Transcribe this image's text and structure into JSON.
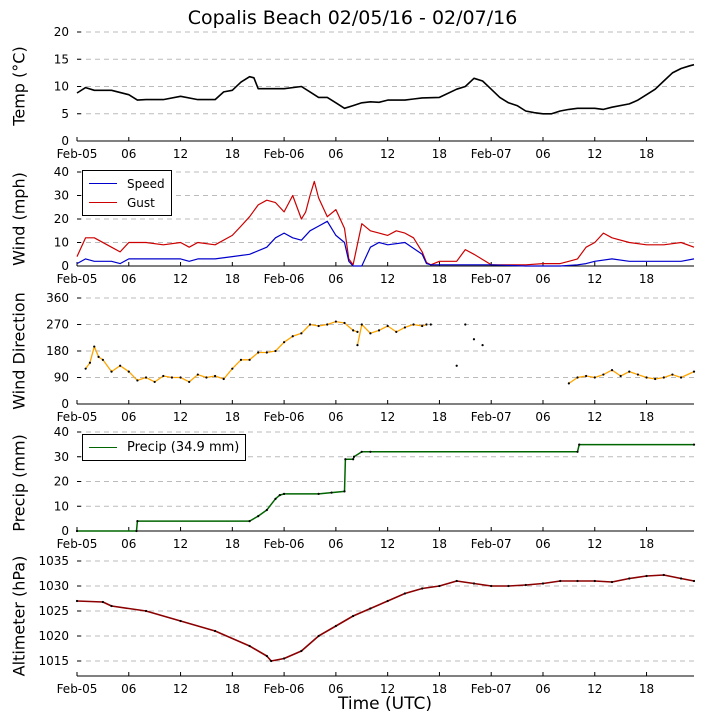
{
  "title": "Copalis Beach 02/05/16 - 02/07/16",
  "xlabel": "Time (UTC)",
  "x_tick_labels": [
    "Feb-05",
    "06",
    "12",
    "18",
    "Feb-06",
    "06",
    "12",
    "18",
    "Feb-07",
    "06",
    "12",
    "18"
  ],
  "colors": {
    "temp": "#000000",
    "speed": "#0000cc",
    "gust": "#cc0000",
    "direction": "#ffa500",
    "precip": "#006600",
    "altimeter": "#8b0000",
    "grid": "#bbbbbb"
  },
  "panels": {
    "temp": {
      "ylabel": "Temp ($^\\circ$C)",
      "ylabel_display": "Temp (°C)",
      "yticks": [
        "0",
        "5",
        "10",
        "15",
        "20"
      ]
    },
    "wind": {
      "ylabel": "Wind (mph)",
      "yticks": [
        "0",
        "10",
        "20",
        "30",
        "40"
      ],
      "legend": [
        "Speed",
        "Gust"
      ]
    },
    "direction": {
      "ylabel": "Wind Direction",
      "yticks": [
        "0",
        "90",
        "180",
        "270",
        "360"
      ]
    },
    "precip": {
      "ylabel": "Precip (mm)",
      "yticks": [
        "0",
        "10",
        "20",
        "30",
        "40"
      ],
      "legend": [
        "Precip (34.9 mm)"
      ]
    },
    "altimeter": {
      "ylabel": "Altimeter (hPa)",
      "yticks": [
        "1015",
        "1020",
        "1025",
        "1030",
        "1035"
      ]
    }
  },
  "chart_data": [
    {
      "type": "line",
      "title": "Copalis Beach 02/05/16 - 02/07/16",
      "xlabel": "",
      "ylabel": "Temp (°C)",
      "x_unit": "hours since Feb-05 00 UTC",
      "xlim": [
        0,
        71.5
      ],
      "ylim": [
        0,
        20
      ],
      "grid": true,
      "series": [
        {
          "name": "",
          "x": [
            0,
            1,
            2,
            4,
            6,
            7,
            8,
            10,
            12,
            14,
            16,
            17,
            18,
            19,
            20,
            20.5,
            21,
            22,
            24,
            26,
            27,
            28,
            29,
            30,
            31,
            32,
            33,
            34,
            35,
            36,
            38,
            39,
            40,
            42,
            44,
            45,
            46,
            47,
            48,
            49,
            50,
            51,
            52,
            53,
            54,
            55,
            56,
            57,
            58,
            60,
            61,
            62,
            64,
            65,
            66,
            67,
            68,
            69,
            70,
            71,
            71.5
          ],
          "values": [
            8.8,
            9.8,
            9.3,
            9.3,
            8.5,
            7.5,
            7.6,
            7.6,
            8.2,
            7.6,
            7.6,
            9,
            9.3,
            10.8,
            11.8,
            11.6,
            9.6,
            9.6,
            9.6,
            10,
            9,
            8,
            8,
            7,
            6,
            6.5,
            7,
            7.2,
            7.1,
            7.5,
            7.5,
            7.7,
            7.9,
            8,
            9.5,
            10,
            11.5,
            11,
            9.5,
            8,
            7,
            6.5,
            5.5,
            5.2,
            5,
            5,
            5.5,
            5.8,
            6,
            6,
            5.8,
            6.2,
            6.8,
            7.5,
            8.5,
            9.5,
            11,
            12.5,
            13.3,
            13.8,
            14
          ]
        }
      ]
    },
    {
      "type": "line",
      "title": "",
      "xlabel": "",
      "ylabel": "Wind (mph)",
      "x_unit": "hours since Feb-05 00 UTC",
      "xlim": [
        0,
        71.5
      ],
      "ylim": [
        0,
        40
      ],
      "grid": true,
      "legend": "top-left",
      "series": [
        {
          "name": "Speed",
          "x": [
            0,
            1,
            2,
            4,
            5,
            6,
            8,
            10,
            12,
            13,
            14,
            16,
            18,
            20,
            22,
            23,
            24,
            25,
            26,
            27,
            28,
            29,
            30,
            31,
            31.5,
            32,
            33,
            34,
            35,
            36,
            38,
            40,
            40.5,
            41,
            42,
            44,
            48,
            52,
            55,
            56,
            58,
            59,
            60,
            62,
            64,
            66,
            68,
            70,
            71.5
          ],
          "values": [
            1,
            3,
            2,
            2,
            1,
            3,
            3,
            3,
            3,
            2,
            3,
            3,
            4,
            5,
            8,
            12,
            14,
            12,
            11,
            15,
            17,
            19,
            13,
            10,
            2,
            0,
            0,
            8,
            10,
            9,
            10,
            5,
            1,
            0.5,
            0.5,
            0.5,
            0.5,
            0,
            0,
            0,
            0.5,
            1,
            2,
            3,
            2,
            2,
            2,
            2,
            3
          ]
        },
        {
          "name": "Gust",
          "x": [
            0,
            1,
            2,
            4,
            5,
            6,
            8,
            10,
            12,
            13,
            14,
            16,
            18,
            19,
            20,
            21,
            22,
            23,
            24,
            25,
            26,
            26.5,
            27,
            27.5,
            28,
            29,
            30,
            31,
            31.5,
            32,
            33,
            34,
            35,
            36,
            37,
            38,
            39,
            40,
            40.5,
            41,
            42,
            44,
            45,
            46,
            48,
            50,
            52,
            54,
            56,
            57,
            58,
            59,
            60,
            61,
            62,
            64,
            66,
            68,
            70,
            71.5
          ],
          "values": [
            4,
            12,
            12,
            8,
            6,
            10,
            10,
            9,
            10,
            8,
            10,
            9,
            13,
            17,
            21,
            26,
            28,
            27,
            23,
            30,
            20,
            23,
            30,
            36,
            29,
            21,
            24,
            16,
            3,
            0.5,
            18,
            15,
            14,
            13,
            15,
            14,
            12,
            6,
            1.5,
            0.5,
            2,
            2,
            7,
            5,
            0.5,
            0.5,
            0.5,
            1,
            1,
            2,
            3,
            8,
            10,
            14,
            12,
            10,
            9,
            9,
            10,
            8
          ]
        }
      ]
    },
    {
      "type": "line",
      "title": "",
      "xlabel": "",
      "ylabel": "Wind Direction",
      "x_unit": "hours since Feb-05 00 UTC",
      "xlim": [
        0,
        71.5
      ],
      "ylim": [
        0,
        360
      ],
      "grid": true,
      "series": [
        {
          "name": "",
          "segments": [
            {
              "x": [
                1,
                1.5,
                2,
                2.5,
                3,
                4,
                5,
                6,
                7,
                8,
                9,
                10,
                11,
                12,
                13,
                14,
                15,
                16,
                17,
                18,
                19,
                20,
                21,
                22,
                23,
                24,
                25,
                26,
                27,
                28,
                29,
                30,
                31,
                32,
                32.5
              ],
              "values": [
                120,
                140,
                195,
                160,
                150,
                110,
                130,
                110,
                80,
                90,
                75,
                95,
                90,
                90,
                75,
                100,
                90,
                95,
                85,
                120,
                150,
                150,
                175,
                175,
                180,
                210,
                230,
                240,
                270,
                265,
                270,
                280,
                275,
                250,
                245
              ]
            },
            {
              "x": [
                32.5,
                33,
                34,
                35,
                36,
                37,
                38,
                39,
                40,
                40.5
              ],
              "values": [
                200,
                270,
                240,
                250,
                265,
                245,
                260,
                270,
                265,
                270
              ]
            },
            {
              "x": [
                57,
                58,
                59,
                60,
                61,
                62,
                63,
                64,
                65,
                66,
                67,
                68,
                69,
                70,
                71.5
              ],
              "values": [
                70,
                90,
                95,
                90,
                100,
                115,
                95,
                110,
                100,
                90,
                85,
                90,
                100,
                90,
                110
              ]
            }
          ],
          "scattered": [
            {
              "x": 41,
              "value": 270
            },
            {
              "x": 45,
              "value": 270
            },
            {
              "x": 46,
              "value": 220
            },
            {
              "x": 47,
              "value": 200
            },
            {
              "x": 44,
              "value": 130
            }
          ]
        }
      ]
    },
    {
      "type": "line",
      "title": "",
      "xlabel": "",
      "ylabel": "Precip (mm)",
      "x_unit": "hours since Feb-05 00 UTC",
      "xlim": [
        0,
        71.5
      ],
      "ylim": [
        0,
        40
      ],
      "grid": true,
      "legend": "top-left",
      "series": [
        {
          "name": "Precip (34.9 mm)",
          "x": [
            0,
            6.9,
            7,
            20,
            21,
            22,
            23,
            23.5,
            24,
            28,
            29.5,
            31,
            31.1,
            32,
            32.1,
            33,
            34,
            58,
            58.2,
            71.5
          ],
          "values": [
            0,
            0,
            4,
            4,
            6,
            8.5,
            13,
            14.5,
            15,
            15,
            15.5,
            16,
            29,
            29,
            30,
            32,
            32,
            32,
            34.9,
            34.9
          ]
        }
      ]
    },
    {
      "type": "line",
      "title": "",
      "xlabel": "Time (UTC)",
      "ylabel": "Altimeter (hPa)",
      "x_unit": "hours since Feb-05 00 UTC",
      "xlim": [
        0,
        71.5
      ],
      "ylim": [
        1012,
        1035
      ],
      "grid": true,
      "series": [
        {
          "name": "",
          "x": [
            0,
            3,
            4,
            8,
            12,
            16,
            20,
            22,
            22.5,
            24,
            26,
            28,
            30,
            32,
            34,
            36,
            38,
            40,
            42,
            44,
            46,
            48,
            50,
            52,
            54,
            56,
            58,
            60,
            62,
            64,
            66,
            68,
            70,
            71.5
          ],
          "values": [
            1027,
            1026.8,
            1026,
            1025,
            1023,
            1021,
            1018,
            1016,
            1015,
            1015.5,
            1017,
            1020,
            1022,
            1024,
            1025.5,
            1027,
            1028.5,
            1029.5,
            1030,
            1031,
            1030.5,
            1030,
            1030,
            1030.2,
            1030.5,
            1031,
            1031,
            1031,
            1030.8,
            1031.5,
            1032,
            1032.2,
            1031.5,
            1031
          ]
        }
      ]
    }
  ]
}
